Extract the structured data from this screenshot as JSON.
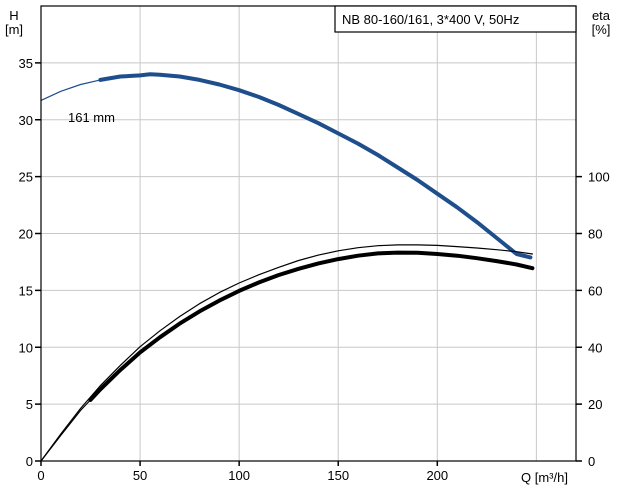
{
  "chart_data": {
    "type": "line",
    "title": "NB 80-160/161, 3*400 V, 50Hz",
    "xlabel": "Q [m³/h]",
    "ylabel_left": {
      "name": "H",
      "unit": "[m]"
    },
    "ylabel_right": {
      "name": "eta",
      "unit": "[%]"
    },
    "xlim": [
      0,
      270
    ],
    "ylim_left": [
      0,
      40
    ],
    "ylim_right": [
      0,
      160
    ],
    "x_ticks": [
      "0",
      "50",
      "100",
      "150",
      "200"
    ],
    "x_tick_values": [
      0,
      50,
      100,
      150,
      200
    ],
    "y_left_ticks": [
      "0",
      "5",
      "10",
      "15",
      "20",
      "25",
      "30",
      "35"
    ],
    "y_left_tick_values": [
      0,
      5,
      10,
      15,
      20,
      25,
      30,
      35
    ],
    "y_right_ticks": [
      "0",
      "20",
      "40",
      "60",
      "80",
      "100"
    ],
    "y_right_tick_values": [
      0,
      20,
      40,
      60,
      80,
      100
    ],
    "grid": true,
    "annotations": [
      {
        "text": "161 mm",
        "x": 15,
        "y": 34
      }
    ],
    "series": [
      {
        "axis": "left",
        "color": "#1f4e8c",
        "x": [
          0,
          10,
          20,
          30,
          40,
          50,
          55,
          60,
          70,
          80,
          90,
          100,
          110,
          120,
          130,
          140,
          150,
          160,
          170,
          180,
          190,
          200,
          210,
          220,
          230,
          240,
          247
        ],
        "y": [
          31.7,
          32.5,
          33.1,
          33.5,
          33.8,
          33.9,
          34.0,
          33.95,
          33.8,
          33.5,
          33.1,
          32.6,
          32.0,
          31.3,
          30.5,
          29.7,
          28.8,
          27.9,
          26.9,
          25.8,
          24.7,
          23.5,
          22.3,
          21.0,
          19.6,
          18.2,
          17.9
        ],
        "highlight_from": 25
      },
      {
        "axis": "right",
        "color": "#000000",
        "x": [
          0,
          10,
          20,
          25,
          30,
          40,
          50,
          60,
          70,
          80,
          90,
          100,
          110,
          120,
          130,
          140,
          150,
          160,
          170,
          180,
          190,
          200,
          210,
          220,
          230,
          240,
          248
        ],
        "y": [
          0,
          9.5,
          18.5,
          22.5,
          26.5,
          33.6,
          40.2,
          45.8,
          50.8,
          55.3,
          59.2,
          62.6,
          65.5,
          68.1,
          70.5,
          72.4,
          73.9,
          75.0,
          75.7,
          76.0,
          76.0,
          75.8,
          75.4,
          74.9,
          74.3,
          73.6,
          72.8
        ]
      },
      {
        "axis": "right",
        "color": "#000000",
        "x": [
          0,
          10,
          20,
          25,
          30,
          40,
          50,
          60,
          70,
          80,
          90,
          100,
          110,
          120,
          130,
          140,
          150,
          160,
          170,
          180,
          190,
          200,
          210,
          220,
          230,
          240,
          248
        ],
        "y": [
          0,
          9.0,
          17.8,
          21.5,
          25.2,
          32.0,
          38.2,
          43.5,
          48.3,
          52.6,
          56.4,
          59.8,
          62.8,
          65.4,
          67.6,
          69.5,
          71.0,
          72.2,
          73.0,
          73.3,
          73.2,
          72.8,
          72.2,
          71.3,
          70.3,
          69.1,
          67.8
        ],
        "highlight_from": 25
      }
    ]
  }
}
